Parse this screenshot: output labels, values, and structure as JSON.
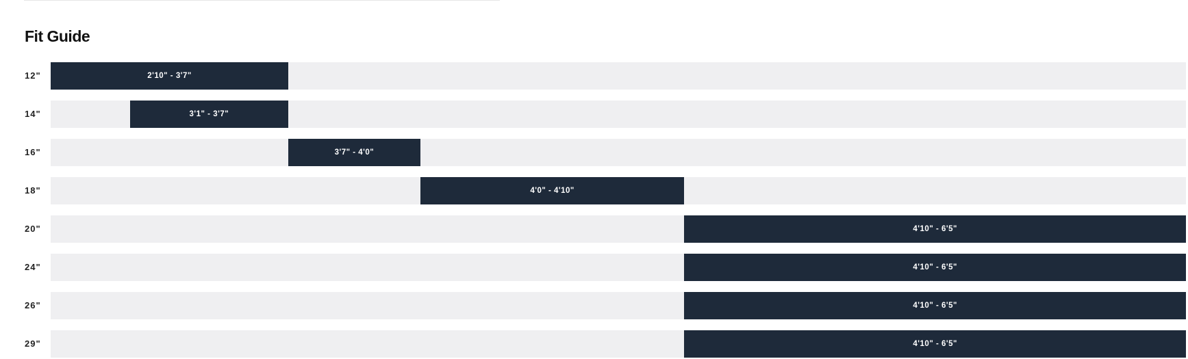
{
  "title": "Fit Guide",
  "colors": {
    "bar": "#1e2a3a",
    "track": "#efeff1"
  },
  "scale_inches": {
    "min": 34,
    "max": 77
  },
  "rows": [
    {
      "size": "12\"",
      "range": "2'10\" - 3'7\"",
      "from_in": 34,
      "to_in": 43
    },
    {
      "size": "14\"",
      "range": "3'1\" - 3'7\"",
      "from_in": 37,
      "to_in": 43
    },
    {
      "size": "16\"",
      "range": "3'7\" - 4'0\"",
      "from_in": 43,
      "to_in": 48
    },
    {
      "size": "18\"",
      "range": "4'0\" - 4'10\"",
      "from_in": 48,
      "to_in": 58
    },
    {
      "size": "20\"",
      "range": "4'10\" - 6'5\"",
      "from_in": 58,
      "to_in": 77
    },
    {
      "size": "24\"",
      "range": "4'10\" - 6'5\"",
      "from_in": 58,
      "to_in": 77
    },
    {
      "size": "26\"",
      "range": "4'10\" - 6'5\"",
      "from_in": 58,
      "to_in": 77
    },
    {
      "size": "29\"",
      "range": "4'10\" - 6'5\"",
      "from_in": 58,
      "to_in": 77
    }
  ]
}
